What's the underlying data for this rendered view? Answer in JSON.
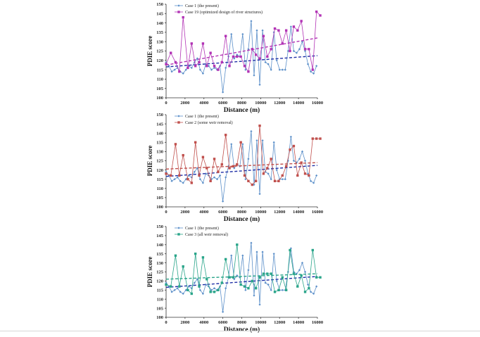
{
  "chart_data": [
    {
      "type": "line",
      "xlabel": "Distance (m)",
      "ylabel": "PDIE score",
      "xlim": [
        0,
        16000
      ],
      "ylim": [
        100,
        150
      ],
      "x_ticks": [
        0,
        2000,
        4000,
        6000,
        8000,
        10000,
        12000,
        14000,
        16000
      ],
      "y_ticks": [
        100,
        105,
        110,
        115,
        120,
        125,
        130,
        135,
        140,
        145,
        150
      ],
      "legend_position": "top-left",
      "series": [
        {
          "name": "Case 1 (the present)",
          "color": "#5b8fc9",
          "marker": "diamond",
          "x": [
            0,
            300,
            600,
            900,
            1200,
            1500,
            1800,
            2100,
            2400,
            2700,
            3000,
            3300,
            3600,
            3900,
            4200,
            4500,
            4800,
            5100,
            5400,
            5700,
            6000,
            6300,
            6600,
            6900,
            7200,
            7500,
            7800,
            8100,
            8400,
            8700,
            9000,
            9300,
            9600,
            9900,
            10200,
            10500,
            10800,
            11100,
            11400,
            11700,
            12000,
            12300,
            12600,
            12900,
            13200,
            13500,
            13800,
            14100,
            14400,
            14700,
            15000,
            15300,
            15600,
            15900
          ],
          "values": [
            119,
            117,
            114,
            115,
            116,
            114,
            113,
            115,
            117,
            116,
            119,
            121,
            115,
            113,
            118,
            117,
            115,
            116,
            115,
            117,
            103,
            116,
            122,
            134,
            121,
            123,
            122,
            134,
            115,
            126,
            141,
            112,
            136,
            107,
            136,
            119,
            118,
            115,
            135,
            120,
            115,
            115,
            115,
            125,
            138,
            125,
            124,
            126,
            130,
            125,
            118,
            114,
            113,
            117
          ],
          "trend": [
            116.5,
            122.5
          ]
        },
        {
          "name": "Case 19 (optimized design of river structures)",
          "color": "#b233b5",
          "marker": "square",
          "x": [
            0,
            500,
            1000,
            1400,
            1800,
            2300,
            2700,
            3100,
            3500,
            3900,
            4300,
            4700,
            5100,
            5500,
            5900,
            6300,
            6700,
            7100,
            7500,
            7900,
            8300,
            8700,
            9100,
            9500,
            9900,
            10300,
            10700,
            11100,
            11500,
            11900,
            12300,
            12700,
            13100,
            13500,
            13900,
            14300,
            14700,
            15100,
            15500,
            15900,
            16300
          ],
          "values": [
            118,
            124,
            119,
            114,
            143,
            116,
            129,
            117,
            119,
            129,
            117,
            124,
            117,
            115,
            119,
            133,
            117,
            122,
            122,
            122,
            117,
            114,
            126,
            123,
            121,
            133,
            122,
            126,
            137,
            136,
            129,
            136,
            125,
            138,
            136,
            141,
            126,
            126,
            115,
            146,
            144
          ],
          "trend": [
            117.5,
            132
          ]
        }
      ]
    },
    {
      "type": "line",
      "xlabel": "Distance (m)",
      "ylabel": "PDIE score",
      "xlim": [
        0,
        16000
      ],
      "ylim": [
        100,
        150
      ],
      "x_ticks": [
        0,
        2000,
        4000,
        6000,
        8000,
        10000,
        12000,
        14000,
        16000
      ],
      "y_ticks": [
        100,
        105,
        110,
        115,
        120,
        125,
        130,
        135,
        140,
        145,
        150
      ],
      "legend_position": "top-left",
      "series": [
        {
          "name": "Case 1 (the present)",
          "color": "#5b8fc9",
          "marker": "diamond",
          "x": [
            0,
            300,
            600,
            900,
            1200,
            1500,
            1800,
            2100,
            2400,
            2700,
            3000,
            3300,
            3600,
            3900,
            4200,
            4500,
            4800,
            5100,
            5400,
            5700,
            6000,
            6300,
            6600,
            6900,
            7200,
            7500,
            7800,
            8100,
            8400,
            8700,
            9000,
            9300,
            9600,
            9900,
            10200,
            10500,
            10800,
            11100,
            11400,
            11700,
            12000,
            12300,
            12600,
            12900,
            13200,
            13500,
            13800,
            14100,
            14400,
            14700,
            15000,
            15300,
            15600,
            15900
          ],
          "values": [
            119,
            117,
            114,
            115,
            116,
            114,
            113,
            115,
            117,
            116,
            119,
            121,
            115,
            113,
            118,
            117,
            115,
            116,
            115,
            117,
            103,
            116,
            122,
            134,
            121,
            123,
            122,
            134,
            115,
            126,
            141,
            112,
            136,
            107,
            136,
            119,
            118,
            115,
            135,
            120,
            115,
            115,
            115,
            125,
            138,
            125,
            124,
            126,
            130,
            125,
            118,
            114,
            113,
            117
          ],
          "trend": [
            116.5,
            122.5
          ]
        },
        {
          "name": "Case 2 (some weir removal)",
          "color": "#c0504d",
          "marker": "square",
          "x": [
            0,
            500,
            1000,
            1400,
            1800,
            2300,
            2700,
            3100,
            3500,
            3900,
            4300,
            4700,
            5100,
            5500,
            5900,
            6300,
            6700,
            7100,
            7500,
            7900,
            8300,
            8700,
            9100,
            9500,
            9900,
            10300,
            10700,
            11100,
            11500,
            11900,
            12300,
            12700,
            13100,
            13500,
            13900,
            14300,
            14700,
            15100,
            15500,
            15900,
            16300
          ],
          "values": [
            118,
            117,
            134,
            117,
            128,
            115,
            113,
            135,
            117,
            127,
            121,
            114,
            126,
            119,
            123,
            139,
            121,
            122,
            123,
            135,
            117,
            114,
            112,
            114,
            144,
            118,
            121,
            126,
            114,
            114,
            117,
            122,
            131,
            133,
            117,
            124,
            118,
            117,
            137,
            137,
            137
          ],
          "trend": [
            120.5,
            124
          ]
        }
      ]
    },
    {
      "type": "line",
      "xlabel": "Distance (m)",
      "ylabel": "PDIE score",
      "xlim": [
        0,
        16000
      ],
      "ylim": [
        100,
        150
      ],
      "x_ticks": [
        0,
        2000,
        4000,
        6000,
        8000,
        10000,
        12000,
        14000,
        16000
      ],
      "y_ticks": [
        100,
        105,
        110,
        115,
        120,
        125,
        130,
        135,
        140,
        145,
        150
      ],
      "legend_position": "top-left",
      "series": [
        {
          "name": "Case 1 (the present)",
          "color": "#5b8fc9",
          "marker": "diamond",
          "x": [
            0,
            300,
            600,
            900,
            1200,
            1500,
            1800,
            2100,
            2400,
            2700,
            3000,
            3300,
            3600,
            3900,
            4200,
            4500,
            4800,
            5100,
            5400,
            5700,
            6000,
            6300,
            6600,
            6900,
            7200,
            7500,
            7800,
            8100,
            8400,
            8700,
            9000,
            9300,
            9600,
            9900,
            10200,
            10500,
            10800,
            11100,
            11400,
            11700,
            12000,
            12300,
            12600,
            12900,
            13200,
            13500,
            13800,
            14100,
            14400,
            14700,
            15000,
            15300,
            15600,
            15900
          ],
          "values": [
            119,
            117,
            114,
            115,
            116,
            114,
            113,
            115,
            117,
            116,
            119,
            121,
            115,
            113,
            118,
            117,
            115,
            116,
            115,
            117,
            103,
            116,
            122,
            134,
            121,
            123,
            122,
            134,
            115,
            126,
            141,
            112,
            136,
            107,
            136,
            119,
            118,
            115,
            135,
            120,
            115,
            115,
            115,
            125,
            138,
            125,
            124,
            126,
            130,
            125,
            118,
            114,
            113,
            117
          ],
          "trend": [
            116.5,
            122.5
          ]
        },
        {
          "name": "Case 3 (all weir removal)",
          "color": "#2aa58a",
          "marker": "square",
          "x": [
            0,
            500,
            1000,
            1400,
            1800,
            2300,
            2700,
            3100,
            3500,
            3900,
            4300,
            4700,
            5100,
            5500,
            5900,
            6300,
            6700,
            7100,
            7500,
            7900,
            8300,
            8700,
            9100,
            9500,
            9900,
            10300,
            10700,
            11100,
            11500,
            11900,
            12300,
            12700,
            13100,
            13500,
            13900,
            14300,
            14700,
            15100,
            15500,
            15900,
            16300
          ],
          "values": [
            118,
            117,
            134,
            117,
            128,
            115,
            113,
            135,
            117,
            133,
            121,
            114,
            114,
            115,
            119,
            132,
            122,
            122,
            140,
            118,
            117,
            116,
            120,
            116,
            122,
            124,
            124,
            124,
            114,
            115,
            122,
            115,
            137,
            124,
            117,
            123,
            114,
            116,
            137,
            122,
            122
          ],
          "trend": [
            121,
            124
          ]
        }
      ]
    }
  ]
}
